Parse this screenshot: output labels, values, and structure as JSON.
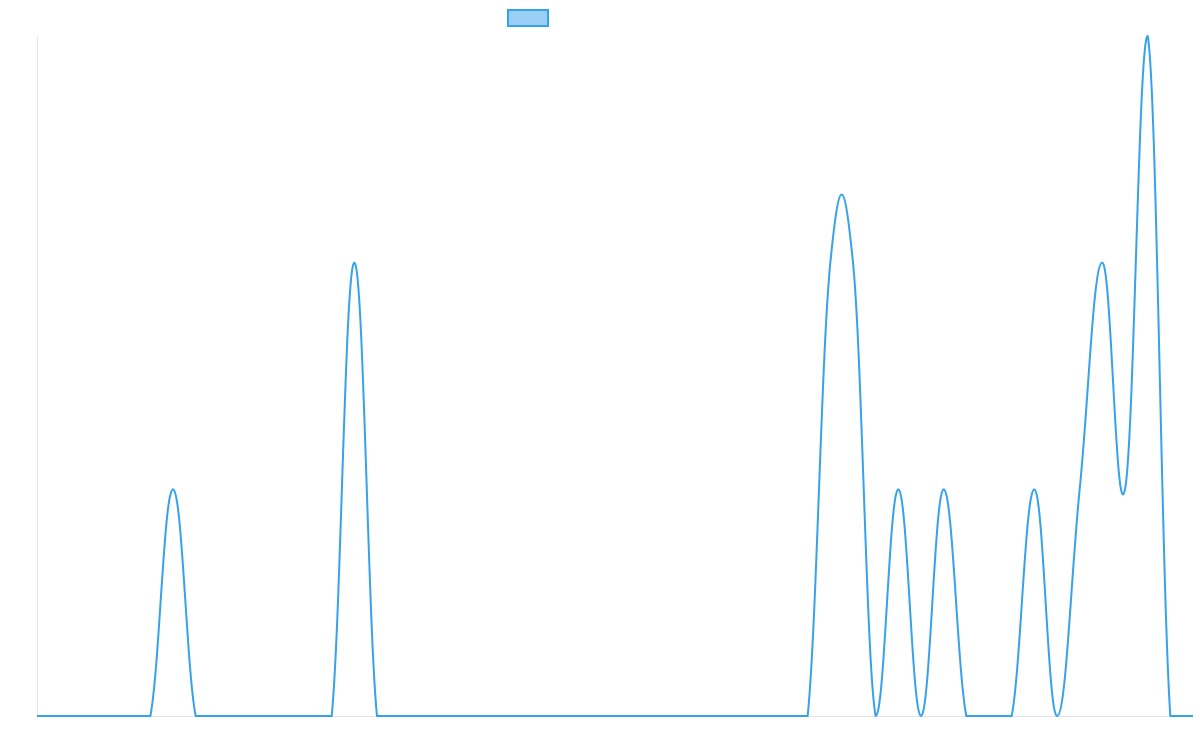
{
  "chart_data": {
    "type": "line",
    "categories": [
      null,
      null,
      null,
      null,
      null,
      null,
      null,
      null,
      null,
      null,
      null,
      null,
      null,
      null,
      null,
      null,
      null,
      null,
      null,
      null,
      null,
      null,
      null,
      null,
      null,
      null,
      null,
      null,
      null,
      null,
      null,
      null,
      null,
      null,
      null,
      null,
      null,
      null,
      null,
      null,
      null,
      null,
      null,
      null,
      null,
      null,
      null,
      null,
      null,
      null,
      null,
      null
    ],
    "series": [
      {
        "color": "#36a2eb",
        "values": [
          0,
          0,
          0,
          0,
          0,
          0,
          1,
          0,
          0,
          0,
          0,
          0,
          0,
          0,
          2,
          0,
          0,
          0,
          0,
          0,
          0,
          0,
          0,
          0,
          0,
          0,
          0,
          0,
          0,
          0,
          0,
          0,
          0,
          0,
          0,
          2,
          2,
          0,
          1,
          0,
          1,
          0,
          0,
          0,
          1,
          0,
          1,
          2,
          1,
          3,
          0,
          0
        ]
      }
    ],
    "ylim": [
      0,
      3
    ]
  }
}
